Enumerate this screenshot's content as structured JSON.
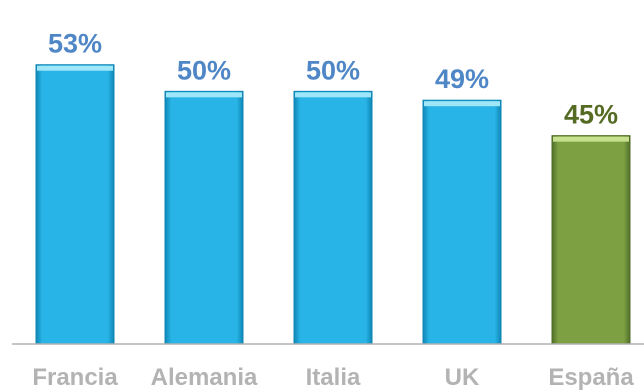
{
  "chart_data": {
    "type": "bar",
    "categories": [
      "Francia",
      "Alemania",
      "Italia",
      "UK",
      "España"
    ],
    "values": [
      53,
      50,
      50,
      49,
      45
    ],
    "data_labels": [
      "53%",
      "50%",
      "50%",
      "49%",
      "45%"
    ],
    "title": "",
    "xlabel": "",
    "ylabel": "",
    "ylim": [
      21.5,
      55
    ],
    "grid": false,
    "legend": "none",
    "highlight_index": 4,
    "colors": {
      "bar": "#28b4e6",
      "bar_edge": "#0e84b3",
      "bar_top": "#9fe6f8",
      "label": "#4f86c6",
      "highlight_bar": "#7da043",
      "highlight_edge": "#4e6a22",
      "highlight_top": "#c7e08d",
      "highlight_label": "#556b24",
      "axis": "#b0b0b0"
    }
  }
}
